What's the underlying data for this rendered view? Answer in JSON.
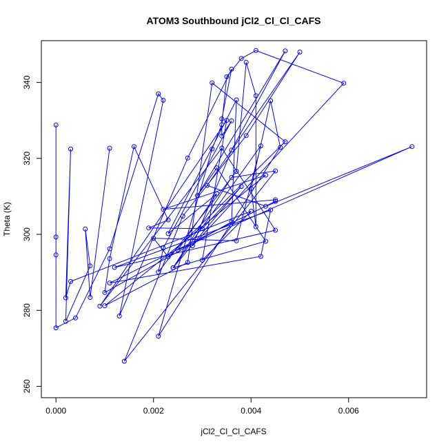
{
  "chart_data": {
    "type": "line",
    "title": "ATOM3 Southbound jCl2_Cl_Cl_CAFS",
    "xlabel": "jCl2_Cl_Cl_CAFS",
    "ylabel": "Theta (K)",
    "xlim": [
      -0.0003,
      0.0076
    ],
    "ylim": [
      257,
      351
    ],
    "xticks": [
      0.0,
      0.002,
      0.004,
      0.006
    ],
    "xtick_labels": [
      "0.000",
      "0.002",
      "0.004",
      "0.006"
    ],
    "yticks": [
      260,
      280,
      300,
      320,
      340
    ],
    "ytick_labels": [
      "260",
      "280",
      "300",
      "320",
      "340"
    ],
    "grid": false,
    "line_color": "#0000ff",
    "points": [
      [
        0.0,
        328.8
      ],
      [
        0.0,
        299.3
      ],
      [
        0.0,
        294.6
      ],
      [
        0.0,
        275.4
      ],
      [
        0.0004,
        278.0
      ],
      [
        0.0011,
        296.2
      ],
      [
        0.0021,
        337.0
      ],
      [
        0.0022,
        335.3
      ],
      [
        0.0013,
        278.5
      ],
      [
        0.0027,
        320.1
      ],
      [
        0.0036,
        343.5
      ],
      [
        0.0034,
        330.4
      ],
      [
        0.0034,
        325.9
      ],
      [
        0.0036,
        329.9
      ],
      [
        0.0022,
        296.4
      ],
      [
        0.0021,
        290.1
      ],
      [
        0.0037,
        316.6
      ],
      [
        0.0039,
        345.3
      ],
      [
        0.0041,
        336.5
      ],
      [
        0.0041,
        302.0
      ],
      [
        0.004,
        312.1
      ],
      [
        0.0044,
        335.2
      ],
      [
        0.0046,
        322.9
      ],
      [
        0.0021,
        273.2
      ],
      [
        0.0032,
        322.5
      ],
      [
        0.0034,
        328.9
      ],
      [
        0.0035,
        341.5
      ],
      [
        0.0038,
        346.3
      ],
      [
        0.0041,
        348.4
      ],
      [
        0.0059,
        339.8
      ],
      [
        0.0028,
        297.0
      ],
      [
        0.0036,
        322.2
      ],
      [
        0.0047,
        348.3
      ],
      [
        0.0029,
        310.2
      ],
      [
        0.0033,
        317.5
      ],
      [
        0.0043,
        298.2
      ],
      [
        0.0024,
        291.2
      ],
      [
        0.0036,
        315.0
      ],
      [
        0.0045,
        316.7
      ],
      [
        0.0014,
        266.6
      ],
      [
        0.0026,
        304.8
      ],
      [
        0.0039,
        326.0
      ],
      [
        0.005,
        348.0
      ],
      [
        0.0031,
        312.9
      ],
      [
        0.0043,
        307.4
      ],
      [
        0.0073,
        323.1
      ],
      [
        0.0025,
        295.9
      ],
      [
        0.0033,
        310.7
      ],
      [
        0.0023,
        300.2
      ],
      [
        0.0037,
        335.4
      ],
      [
        0.0036,
        303.3
      ],
      [
        0.001,
        284.7
      ],
      [
        0.0011,
        293.6
      ],
      [
        0.0016,
        323.1
      ],
      [
        0.0023,
        303.8
      ],
      [
        0.0019,
        301.7
      ],
      [
        0.003,
        301.5
      ],
      [
        0.0038,
        312.6
      ],
      [
        0.0024,
        291.2
      ],
      [
        0.0042,
        323.3
      ],
      [
        0.0037,
        298.3
      ],
      [
        0.002,
        299.0
      ],
      [
        0.0023,
        294.1
      ],
      [
        0.0047,
        324.4
      ],
      [
        0.0032,
        339.9
      ],
      [
        0.0027,
        292.6
      ],
      [
        0.001,
        281.2
      ],
      [
        0.0043,
        315.6
      ],
      [
        0.0022,
        306.6
      ],
      [
        0.0045,
        309.1
      ],
      [
        0.0045,
        308.7
      ],
      [
        0.0011,
        287.2
      ],
      [
        0.0042,
        294.2
      ],
      [
        0.0044,
        306.4
      ],
      [
        0.0012,
        291.3
      ],
      [
        0.0045,
        301.1
      ],
      [
        0.0034,
        322.7
      ],
      [
        0.0009,
        281.1
      ],
      [
        0.0035,
        330.0
      ],
      [
        0.003,
        293.2
      ],
      [
        0.004,
        306.1
      ],
      [
        0.0003,
        287.6
      ],
      [
        0.0002,
        283.3
      ],
      [
        0.0003,
        322.5
      ],
      [
        0.0002,
        277.1
      ],
      [
        0.0007,
        291.7
      ],
      [
        0.0006,
        301.4
      ],
      [
        0.0007,
        283.4
      ],
      [
        0.0011,
        322.7
      ]
    ]
  }
}
